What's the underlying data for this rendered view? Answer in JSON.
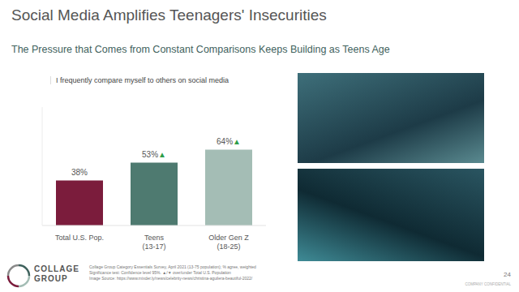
{
  "chart_data": {
    "type": "bar",
    "title": "I frequently compare myself to others on social media",
    "categories": [
      "Total U.S. Pop.",
      "Teens (13-17)",
      "Older Gen Z (18-25)"
    ],
    "values": [
      38,
      53,
      64
    ],
    "value_labels": [
      "38%",
      "53%▲",
      "64%▲"
    ],
    "colors": [
      "#7b1c3c",
      "#4e7a70",
      "#a4bdb5"
    ],
    "ylim": [
      0,
      100
    ],
    "data_labels": true,
    "tick_labels": "x",
    "grid": false
  },
  "slide": {
    "title": "Social Media Amplifies Teenagers' Insecurities",
    "subtitle": "The Pressure that Comes from Constant Comparisons Keeps Building as Teens Age",
    "footnotes": [
      "Collage Group Category Essentials Survey, April 2021 (13-75 population); % agree, weighted",
      "Significance test: Confidence level 95%. ▲/▼ over/under Total U.S. Population",
      "Image Source: https://www.mixder.ly/news/celebrity-news/christina-aguilera-beautiful-2022/"
    ],
    "logo": [
      "COLLAGE",
      "GROUP"
    ],
    "page_number": "24",
    "confidential": "COMPANY CONFIDENTIAL"
  }
}
